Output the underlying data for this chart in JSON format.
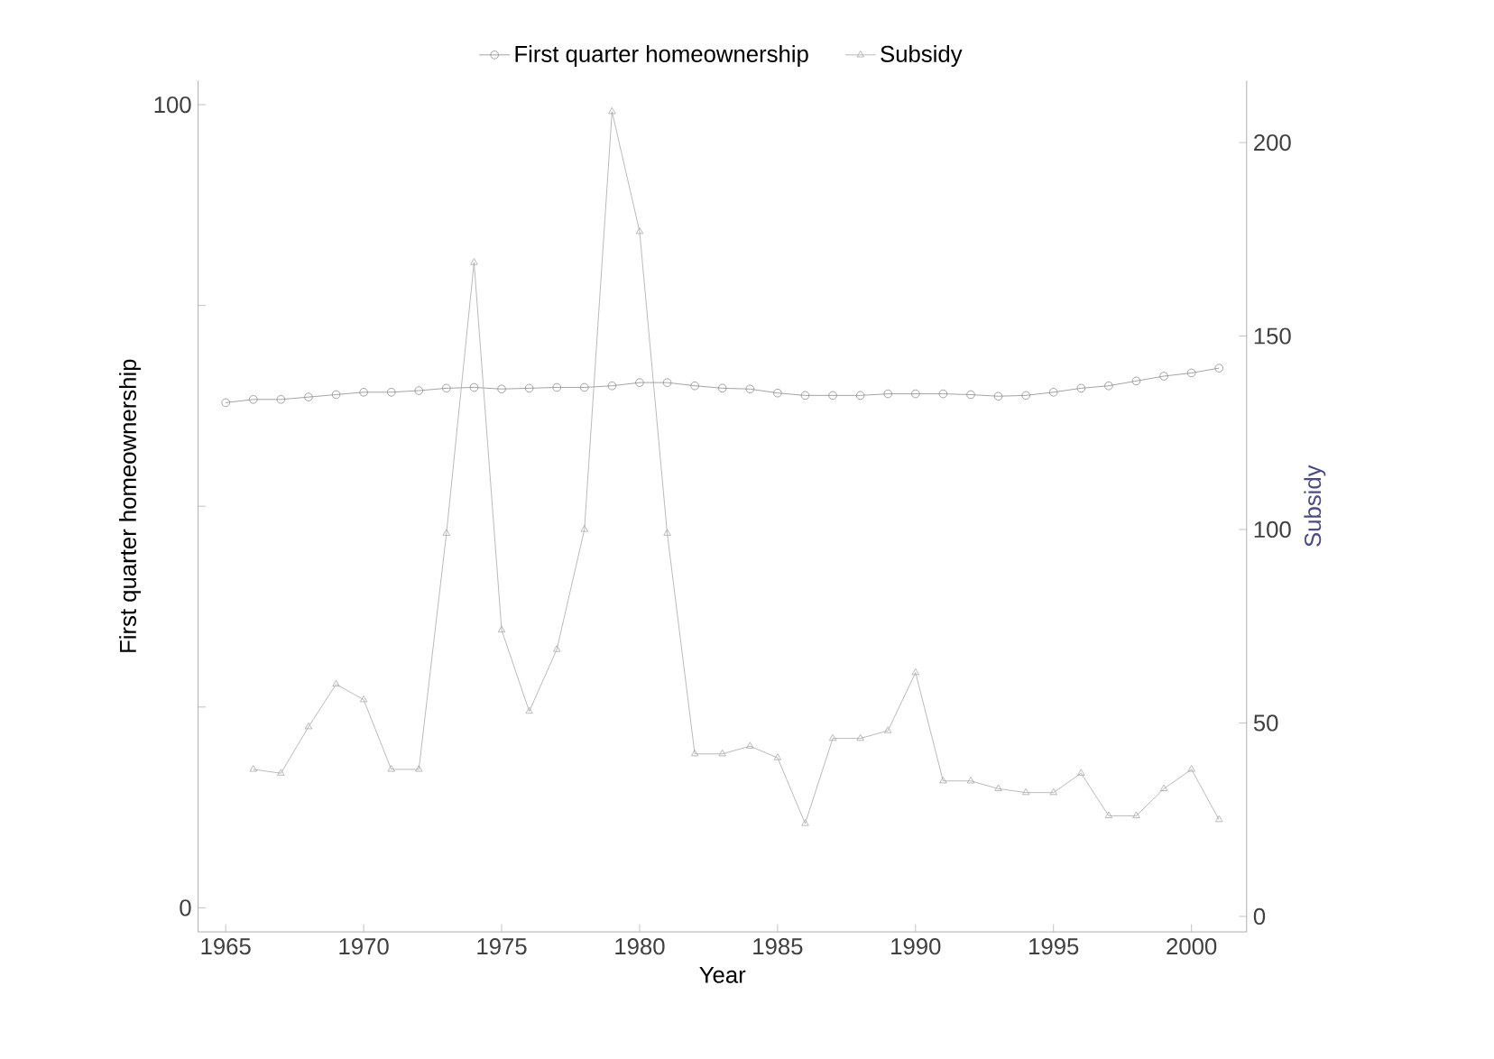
{
  "chart_data": {
    "type": "line",
    "xlabel": "Year",
    "ylabel": "First quarter homeownership",
    "y2label": "Subsidy",
    "x": [
      1965,
      1966,
      1967,
      1968,
      1969,
      1970,
      1971,
      1972,
      1973,
      1974,
      1975,
      1976,
      1977,
      1978,
      1979,
      1980,
      1981,
      1982,
      1983,
      1984,
      1985,
      1986,
      1987,
      1988,
      1989,
      1990,
      1991,
      1992,
      1993,
      1994,
      1995,
      1996,
      1997,
      1998,
      1999,
      2000,
      2001
    ],
    "series": [
      {
        "name": "First quarter homeownership",
        "color": "#8c8c8c",
        "marker": "circle",
        "values": [
          62.9,
          63.3,
          63.3,
          63.6,
          63.9,
          64.2,
          64.2,
          64.4,
          64.7,
          64.8,
          64.6,
          64.7,
          64.8,
          64.8,
          65.0,
          65.4,
          65.4,
          65.0,
          64.7,
          64.6,
          64.1,
          63.8,
          63.8,
          63.8,
          64.0,
          64.0,
          64.0,
          63.9,
          63.7,
          63.8,
          64.2,
          64.7,
          65.0,
          65.6,
          66.2,
          66.6,
          67.2
        ]
      },
      {
        "name": "Subsidy",
        "color": "#a8a8a8",
        "marker": "triangle",
        "axis": "y2",
        "values": [
          null,
          38,
          37,
          49,
          60,
          56,
          38,
          38,
          99,
          169,
          74,
          53,
          69,
          100,
          208,
          177,
          99,
          42,
          42,
          44,
          41,
          24,
          46,
          46,
          48,
          63,
          35,
          35,
          33,
          32,
          32,
          37,
          26,
          26,
          33,
          38,
          25
        ]
      }
    ],
    "xlim": [
      1964,
      2002
    ],
    "xticks": [
      1965,
      1970,
      1975,
      1980,
      1985,
      1990,
      1995,
      2000
    ],
    "ylim": [
      -3,
      103
    ],
    "yticks": [
      0,
      {
        "value": 25,
        "label": null
      },
      {
        "value": 50,
        "label": null
      },
      {
        "value": 75,
        "label": null
      },
      100
    ],
    "y2lim": [
      -4,
      216
    ],
    "y2ticks": [
      0,
      50,
      100,
      150,
      200
    ],
    "legend": "top",
    "grid": false
  }
}
